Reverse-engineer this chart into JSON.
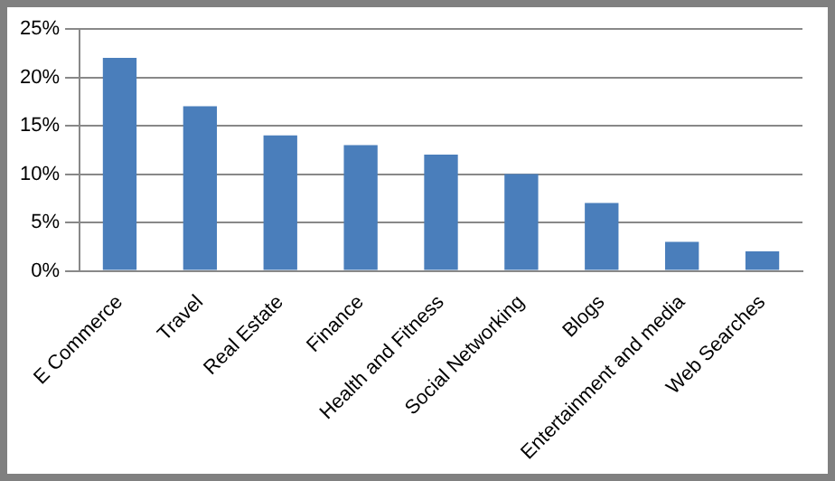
{
  "chart_data": {
    "type": "bar",
    "categories": [
      "E Commerce",
      "Travel",
      "Real Estate",
      "Finance",
      "Health and Fitness",
      "Social Networking",
      "Blogs",
      "Entertainment and media",
      "Web Searches"
    ],
    "values": [
      22,
      17,
      14,
      13,
      12,
      10,
      7,
      3,
      2
    ],
    "color": "#4a7ebb",
    "ylim": [
      0,
      25
    ],
    "yticks": [
      {
        "value": 0,
        "label": "0%"
      },
      {
        "value": 5,
        "label": "5%"
      },
      {
        "value": 10,
        "label": "10%"
      },
      {
        "value": 15,
        "label": "15%"
      },
      {
        "value": 20,
        "label": "20%"
      },
      {
        "value": 25,
        "label": "25%"
      }
    ],
    "grid": "y"
  }
}
